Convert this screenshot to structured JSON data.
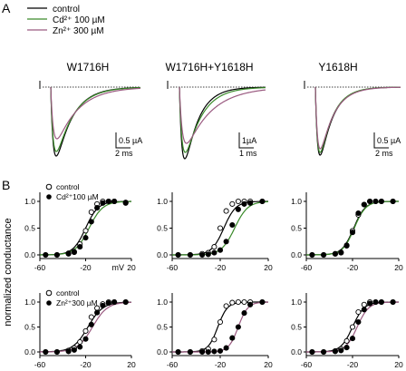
{
  "panel_labels": {
    "a": "A",
    "b": "B"
  },
  "legend_top": {
    "items": [
      {
        "label": "control",
        "color": "#000000"
      },
      {
        "label": "Cd²⁺ 100 µM",
        "color": "#3a8a2a"
      },
      {
        "label": "Zn²⁺ 300 µM",
        "color": "#9a5a80"
      }
    ]
  },
  "colors": {
    "control": "#000000",
    "cd": "#3a8a2a",
    "zn": "#9a5a80"
  },
  "trace_panels": [
    {
      "title": "W1716H",
      "scale_y": "0.5 µA",
      "scale_x": "2 ms"
    },
    {
      "title": "W1716H+Y1618H",
      "scale_y": "1µA",
      "scale_x": "1 ms"
    },
    {
      "title": "Y1618H",
      "scale_y": "0.5 µA",
      "scale_x": "2 ms"
    }
  ],
  "ylabel": "normalized conductance",
  "legend_cd": {
    "control": "control",
    "treat": "Cd²⁺100 µM"
  },
  "legend_zn": {
    "control": "control",
    "treat": "Zn²⁺300 µM"
  },
  "chart_data": [
    {
      "type": "line",
      "row": "Cd",
      "col": "W1716H",
      "xlabel": "mV",
      "xlim": [
        -60,
        20
      ],
      "ylim": [
        0,
        1
      ],
      "xticks": [
        "-60",
        "-20",
        "20"
      ],
      "yticks": [
        "0.0",
        "0.5",
        "1.0"
      ],
      "series": [
        {
          "name": "control",
          "marker": "open",
          "v50": -20,
          "k": 5.5,
          "x": [
            -55,
            -45,
            -35,
            -30,
            -25,
            -20,
            -15,
            -10,
            -5,
            0,
            5,
            15
          ],
          "y": [
            0.0,
            0.0,
            0.03,
            0.06,
            0.2,
            0.45,
            0.8,
            0.95,
            1.0,
            1.0,
            1.0,
            0.98
          ]
        },
        {
          "name": "Cd²⁺100 µM",
          "marker": "filled",
          "v50": -17,
          "k": 6.0,
          "x": [
            -55,
            -45,
            -35,
            -30,
            -25,
            -20,
            -15,
            -10,
            -5,
            0,
            5,
            15
          ],
          "y": [
            0.0,
            0.0,
            0.02,
            0.05,
            0.15,
            0.32,
            0.62,
            0.88,
            0.97,
            1.0,
            1.0,
            0.97
          ]
        }
      ]
    },
    {
      "type": "line",
      "row": "Cd",
      "col": "W1716H+Y1618H",
      "xlim": [
        -60,
        20
      ],
      "ylim": [
        0,
        1
      ],
      "xticks": [
        "-60",
        "-20",
        "20"
      ],
      "yticks": [
        "0.0",
        "0.5",
        "1.0"
      ],
      "series": [
        {
          "name": "control",
          "marker": "open",
          "v50": -17,
          "k": 5.0,
          "x": [
            -55,
            -45,
            -35,
            -30,
            -25,
            -20,
            -15,
            -10,
            -5,
            0,
            5,
            15
          ],
          "y": [
            0.0,
            0.0,
            0.02,
            0.04,
            0.15,
            0.5,
            0.82,
            0.95,
            1.0,
            1.0,
            1.0,
            1.0
          ]
        },
        {
          "name": "Cd²⁺100 µM",
          "marker": "filled",
          "v50": -8,
          "k": 5.5,
          "x": [
            -55,
            -45,
            -35,
            -30,
            -25,
            -20,
            -15,
            -10,
            -5,
            0,
            5,
            15
          ],
          "y": [
            0.0,
            0.0,
            0.0,
            0.01,
            0.04,
            0.09,
            0.25,
            0.56,
            0.85,
            0.95,
            0.97,
            1.0
          ]
        }
      ]
    },
    {
      "type": "line",
      "row": "Cd",
      "col": "Y1618H",
      "xlim": [
        -60,
        20
      ],
      "ylim": [
        0,
        1
      ],
      "xticks": [
        "-60",
        "-20",
        "20"
      ],
      "yticks": [
        "0.0",
        "0.5",
        "1.0"
      ],
      "series": [
        {
          "name": "control",
          "marker": "open",
          "v50": -19,
          "k": 5.0,
          "x": [
            -55,
            -45,
            -35,
            -30,
            -25,
            -20,
            -15,
            -10,
            -5,
            0,
            5,
            15
          ],
          "y": [
            0.0,
            0.0,
            0.02,
            0.05,
            0.18,
            0.45,
            0.75,
            0.94,
            1.0,
            1.0,
            1.0,
            1.0
          ]
        },
        {
          "name": "Cd²⁺100 µM",
          "marker": "filled",
          "v50": -18.5,
          "k": 5.0,
          "x": [
            -55,
            -45,
            -35,
            -30,
            -25,
            -20,
            -15,
            -10,
            -5,
            0,
            5,
            15
          ],
          "y": [
            0.0,
            0.0,
            0.02,
            0.04,
            0.17,
            0.42,
            0.78,
            0.94,
            1.0,
            1.0,
            1.0,
            1.0
          ]
        }
      ]
    },
    {
      "type": "line",
      "row": "Zn",
      "col": "W1716H",
      "xlim": [
        -60,
        20
      ],
      "ylim": [
        0,
        1
      ],
      "xticks": [
        "-60",
        "-20",
        "20"
      ],
      "yticks": [
        "0.0",
        "0.5",
        "1.0"
      ],
      "series": [
        {
          "name": "control",
          "marker": "open",
          "v50": -18,
          "k": 6.5,
          "x": [
            -55,
            -45,
            -35,
            -30,
            -25,
            -20,
            -15,
            -10,
            -5,
            0,
            5,
            15
          ],
          "y": [
            0.0,
            0.0,
            0.03,
            0.08,
            0.2,
            0.42,
            0.7,
            0.88,
            0.96,
            1.0,
            1.0,
            1.0
          ]
        },
        {
          "name": "Zn²⁺300 µM",
          "marker": "filled",
          "v50": -14,
          "k": 6.5,
          "x": [
            -55,
            -45,
            -35,
            -30,
            -25,
            -20,
            -15,
            -10,
            -5,
            0,
            5,
            15
          ],
          "y": [
            0.0,
            0.0,
            0.01,
            0.04,
            0.1,
            0.26,
            0.55,
            0.79,
            0.93,
            0.98,
            1.0,
            1.0
          ]
        }
      ]
    },
    {
      "type": "line",
      "row": "Zn",
      "col": "W1716H+Y1618H",
      "xlim": [
        -60,
        20
      ],
      "ylim": [
        0,
        1
      ],
      "xticks": [
        "-60",
        "-20",
        "20"
      ],
      "yticks": [
        "0.0",
        "0.5",
        "1.0"
      ],
      "series": [
        {
          "name": "control",
          "marker": "open",
          "v50": -22,
          "k": 4.0,
          "x": [
            -55,
            -45,
            -35,
            -30,
            -25,
            -20,
            -15,
            -10,
            -5,
            0,
            5,
            15
          ],
          "y": [
            0.0,
            0.0,
            0.02,
            0.06,
            0.25,
            0.6,
            0.92,
            0.99,
            1.0,
            1.0,
            1.0,
            1.0
          ]
        },
        {
          "name": "Zn²⁺300 µM",
          "marker": "filled",
          "v50": -5,
          "k": 4.0,
          "x": [
            -55,
            -45,
            -35,
            -30,
            -25,
            -20,
            -15,
            -10,
            -5,
            0,
            5,
            15
          ],
          "y": [
            0.0,
            0.0,
            0.0,
            0.0,
            0.01,
            0.02,
            0.08,
            0.28,
            0.5,
            0.78,
            0.95,
            1.0
          ]
        }
      ]
    },
    {
      "type": "line",
      "row": "Zn",
      "col": "Y1618H",
      "xlim": [
        -60,
        20
      ],
      "ylim": [
        0,
        1
      ],
      "xticks": [
        "-60",
        "-20",
        "20"
      ],
      "yticks": [
        "0.0",
        "0.5",
        "1.0"
      ],
      "series": [
        {
          "name": "control",
          "marker": "open",
          "v50": -20,
          "k": 5.0,
          "x": [
            -55,
            -45,
            -35,
            -30,
            -25,
            -20,
            -15,
            -10,
            -5,
            0,
            5,
            15
          ],
          "y": [
            0.0,
            0.0,
            0.02,
            0.06,
            0.22,
            0.5,
            0.8,
            0.95,
            1.0,
            1.0,
            1.0,
            1.0
          ]
        },
        {
          "name": "Zn²⁺300 µM",
          "marker": "filled",
          "v50": -16,
          "k": 5.0,
          "x": [
            -55,
            -45,
            -35,
            -30,
            -25,
            -20,
            -15,
            -10,
            -5,
            0,
            5,
            15
          ],
          "y": [
            0.0,
            0.0,
            0.01,
            0.03,
            0.09,
            0.27,
            0.6,
            0.85,
            0.97,
            1.0,
            1.0,
            1.0
          ]
        }
      ]
    }
  ]
}
